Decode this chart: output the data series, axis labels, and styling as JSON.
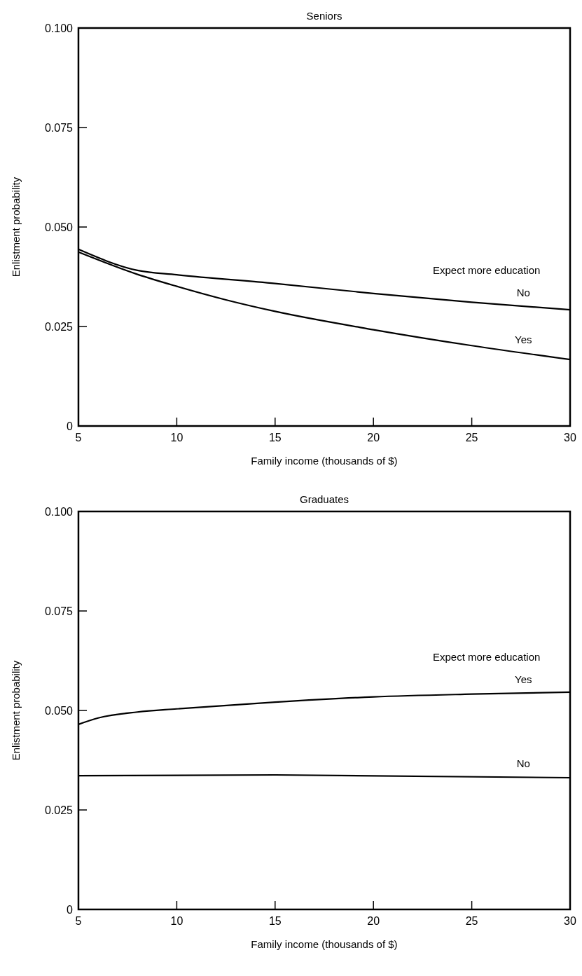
{
  "chart_data": [
    {
      "type": "line",
      "title": "Seniors",
      "xlabel": "Family income (thousands of $)",
      "ylabel": "Enlistment probability",
      "legend_title": "Expect more education",
      "xlim": [
        5,
        30
      ],
      "xticks": [
        5,
        10,
        15,
        20,
        25,
        30
      ],
      "ylim": [
        0,
        0.1
      ],
      "yticks": [
        {
          "value": 0,
          "label": "0"
        },
        {
          "value": 0.025,
          "label": "0.025"
        },
        {
          "value": 0.05,
          "label": "0.050"
        },
        {
          "value": 0.075,
          "label": "0.075"
        },
        {
          "value": 0.1,
          "label": "0.100"
        }
      ],
      "grid": false,
      "x": [
        5,
        8,
        10,
        15,
        20,
        25,
        30
      ],
      "series": [
        {
          "name": "No",
          "color": "#000000",
          "values": [
            0.0444,
            0.0391,
            0.038,
            0.0358,
            0.0333,
            0.0311,
            0.0292
          ]
        },
        {
          "name": "Yes",
          "color": "#000000",
          "x": [
            5,
            8,
            10,
            12.5,
            15,
            20,
            25,
            30
          ],
          "values": [
            0.0437,
            0.0381,
            0.0351,
            0.0317,
            0.0288,
            0.0242,
            0.0202,
            0.0167
          ]
        }
      ]
    },
    {
      "type": "line",
      "title": "Graduates",
      "xlabel": "Family income (thousands of $)",
      "ylabel": "Enlistment probability",
      "legend_title": "Expect more education",
      "xlim": [
        5,
        30
      ],
      "xticks": [
        5,
        10,
        15,
        20,
        25,
        30
      ],
      "ylim": [
        0,
        0.1
      ],
      "yticks": [
        {
          "value": 0,
          "label": "0"
        },
        {
          "value": 0.025,
          "label": "0.025"
        },
        {
          "value": 0.05,
          "label": "0.050"
        },
        {
          "value": 0.075,
          "label": "0.075"
        },
        {
          "value": 0.1,
          "label": "0.100"
        }
      ],
      "grid": false,
      "x": [
        5,
        6,
        8,
        10,
        15,
        20,
        25,
        30
      ],
      "series": [
        {
          "name": "Yes",
          "color": "#000000",
          "values": [
            0.0465,
            0.0481,
            0.0496,
            0.0504,
            0.0521,
            0.0534,
            0.0541,
            0.0546
          ]
        },
        {
          "name": "No",
          "color": "#000000",
          "x": [
            5,
            15,
            30
          ],
          "values": [
            0.0336,
            0.0338,
            0.0331
          ]
        }
      ]
    }
  ]
}
